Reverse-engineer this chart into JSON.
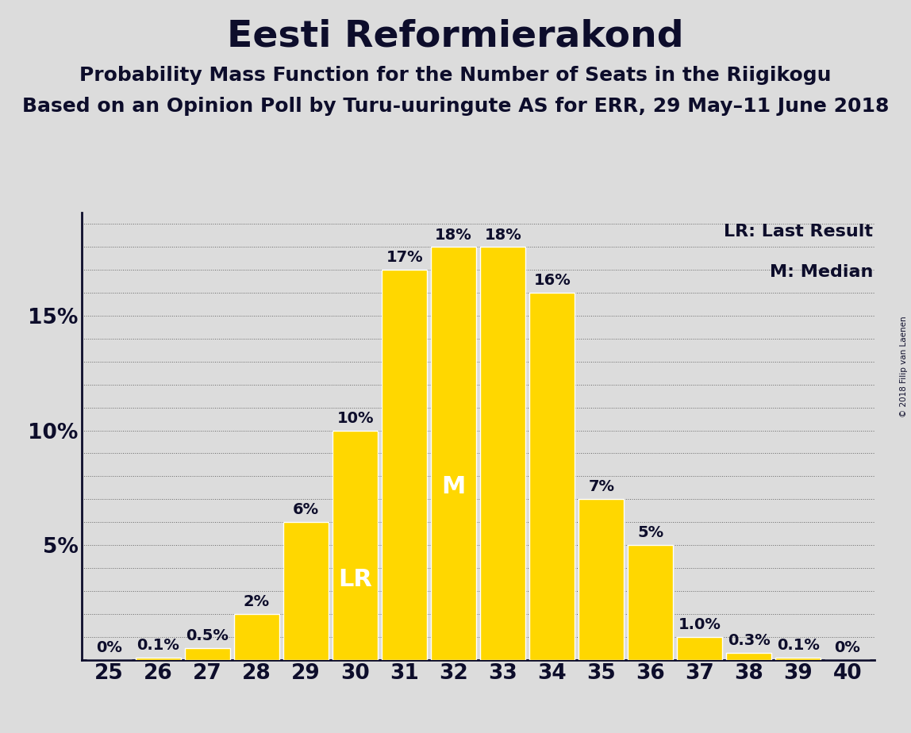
{
  "title": "Eesti Reformierakond",
  "subtitle1": "Probability Mass Function for the Number of Seats in the Riigikogu",
  "subtitle2": "Based on an Opinion Poll by Turu-uuringute AS for ERR, 29 May–11 June 2018",
  "copyright": "© 2018 Filip van Laenen",
  "seats": [
    25,
    26,
    27,
    28,
    29,
    30,
    31,
    32,
    33,
    34,
    35,
    36,
    37,
    38,
    39,
    40
  ],
  "probabilities": [
    0.0,
    0.1,
    0.5,
    2.0,
    6.0,
    10.0,
    17.0,
    18.0,
    18.0,
    16.0,
    7.0,
    5.0,
    1.0,
    0.3,
    0.1,
    0.0
  ],
  "bar_labels": [
    "0%",
    "0.1%",
    "0.5%",
    "2%",
    "6%",
    "10%",
    "17%",
    "18%",
    "18%",
    "16%",
    "7%",
    "5%",
    "1.0%",
    "0.3%",
    "0.1%",
    "0%"
  ],
  "bar_color": "#FFD700",
  "bar_edge_color": "#FFFFFF",
  "background_color": "#DCDCDC",
  "text_color": "#0d0d2b",
  "LR_seat": 30,
  "median_seat": 32,
  "LR_label": "LR",
  "M_label": "M",
  "legend_LR": "LR: Last Result",
  "legend_M": "M: Median",
  "ytick_labels": [
    "5%",
    "10%",
    "15%"
  ],
  "ytick_values": [
    5,
    10,
    15
  ],
  "ylim_max": 19.5,
  "title_fontsize": 34,
  "subtitle_fontsize": 18,
  "tick_fontsize": 19,
  "bar_label_fontsize": 14,
  "inside_label_fontsize": 22,
  "legend_fontsize": 16
}
